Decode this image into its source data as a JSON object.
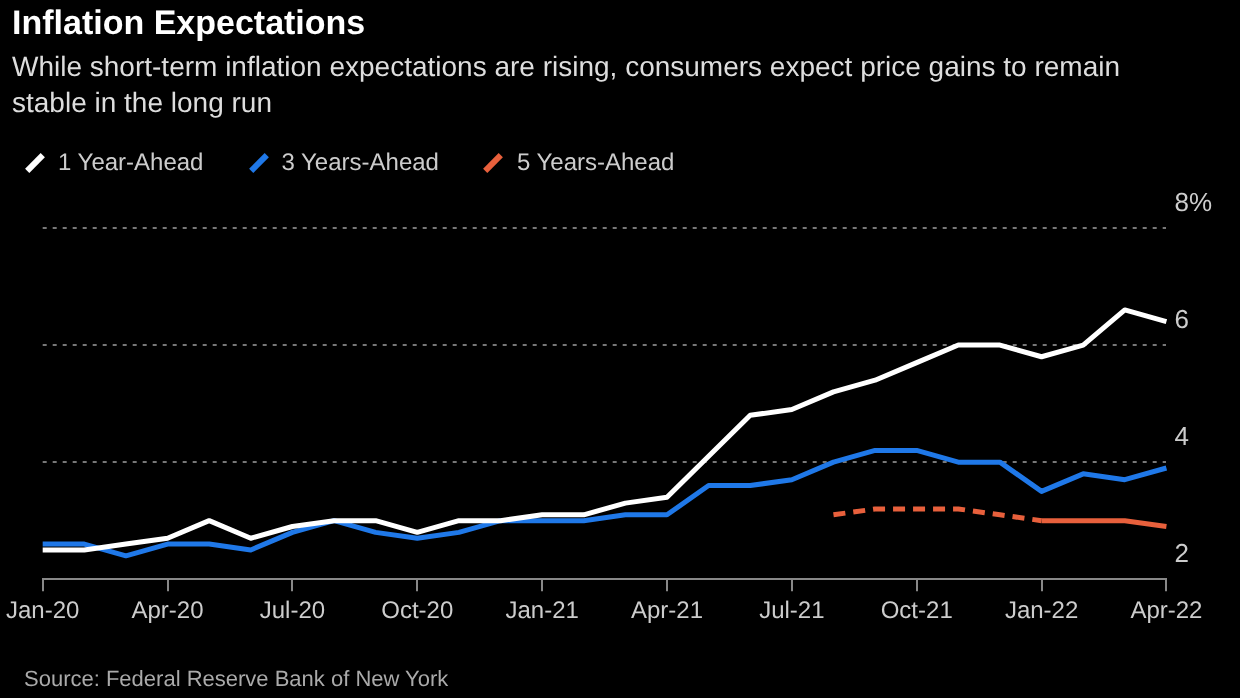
{
  "chart_data": {
    "type": "line",
    "title": "Inflation Expectations",
    "subtitle": "While short-term inflation expectations are rising, consumers expect price gains to remain stable in the long run",
    "categories": [
      "Jan-20",
      null,
      null,
      "Apr-20",
      null,
      null,
      "Jul-20",
      null,
      null,
      "Oct-20",
      null,
      null,
      "Jan-21",
      null,
      null,
      "Apr-21",
      null,
      null,
      "Jul-21",
      null,
      null,
      "Oct-21",
      null,
      null,
      "Jan-22",
      null,
      null,
      "Apr-22"
    ],
    "series": [
      {
        "name": "1 Year-Ahead",
        "color": "#ffffff",
        "values": [
          2.5,
          2.5,
          2.6,
          2.7,
          3.0,
          2.7,
          2.9,
          3.0,
          3.0,
          2.8,
          3.0,
          3.0,
          3.1,
          3.1,
          3.3,
          3.4,
          4.1,
          4.8,
          4.9,
          5.2,
          5.4,
          5.7,
          6.0,
          6.0,
          5.8,
          6.0,
          6.6,
          6.4
        ]
      },
      {
        "name": "3 Years-Ahead",
        "color": "#1f78e8",
        "values": [
          2.6,
          2.6,
          2.4,
          2.6,
          2.6,
          2.5,
          2.8,
          3.0,
          2.8,
          2.7,
          2.8,
          3.0,
          3.0,
          3.0,
          3.1,
          3.1,
          3.6,
          3.6,
          3.7,
          4.0,
          4.2,
          4.2,
          4.0,
          4.0,
          3.5,
          3.8,
          3.7,
          3.9
        ]
      },
      {
        "name": "5 Years-Ahead",
        "color": "#e8603c",
        "line_style": "dashed",
        "values": [
          null,
          null,
          null,
          null,
          null,
          null,
          null,
          null,
          null,
          null,
          null,
          null,
          null,
          null,
          null,
          null,
          null,
          null,
          null,
          3.1,
          3.2,
          3.2,
          3.2,
          3.1,
          3.0,
          null,
          null,
          null
        ]
      },
      {
        "color": "#e8603c",
        "line_style": "solid",
        "values": [
          null,
          null,
          null,
          null,
          null,
          null,
          null,
          null,
          null,
          null,
          null,
          null,
          null,
          null,
          null,
          null,
          null,
          null,
          null,
          null,
          null,
          null,
          null,
          null,
          3.0,
          3.0,
          3.0,
          2.9
        ]
      }
    ],
    "ylim": [
      2,
      8
    ],
    "yticks": [
      2,
      4,
      6,
      {
        "value": 8,
        "label": "8%"
      }
    ],
    "grid": "y",
    "legend": "top left",
    "marker": "none",
    "annotations": [
      "Source: Federal Reserve Bank of New York"
    ]
  }
}
